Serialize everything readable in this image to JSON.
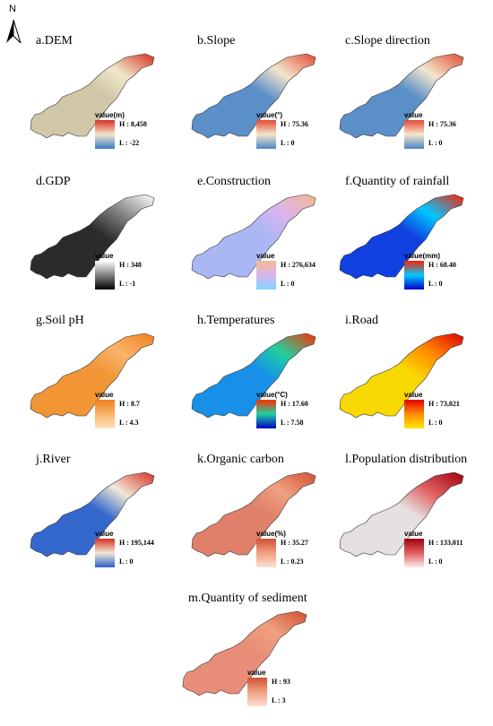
{
  "north_arrow": {
    "label": "N"
  },
  "panels": [
    {
      "id": "a",
      "title": "a.DEM",
      "legend": {
        "label": "value(m)",
        "high": "H : 8,458",
        "low": "L : -22"
      },
      "colors": {
        "low": "#3a78c8",
        "mid": "#f2e7c9",
        "high": "#d7301f"
      },
      "fill": "#cfc7a8"
    },
    {
      "id": "b",
      "title": "b.Slope",
      "legend": {
        "label": "value(°)",
        "high": "H : 75.36",
        "low": "L : 0"
      },
      "colors": {
        "low": "#4a86c6",
        "mid": "#f3e6cc",
        "high": "#e34a33"
      },
      "fill": "#5b8fc8"
    },
    {
      "id": "c",
      "title": "c.Slope direction",
      "legend": {
        "label": "value",
        "high": "H : 75.36",
        "low": "L : 0"
      },
      "colors": {
        "low": "#4a86c6",
        "mid": "#f3e6cc",
        "high": "#e34a33"
      },
      "fill": "#5b8fc8"
    },
    {
      "id": "d",
      "title": "d.GDP",
      "legend": {
        "label": "value",
        "high": "H : 348",
        "low": "L : -1"
      },
      "colors": {
        "low": "#000000",
        "mid": "#808080",
        "high": "#ffffff"
      },
      "fill": "#2b2b2b"
    },
    {
      "id": "e",
      "title": "e.Construction",
      "legend": {
        "label": "value",
        "high": "H : 276,634",
        "low": "L : 0"
      },
      "colors": {
        "low": "#7fd6ff",
        "mid": "#d9b4f0",
        "high": "#f6b98c"
      },
      "fill": "#a9b8f5"
    },
    {
      "id": "f",
      "title": "f.Quantity of rainfall",
      "legend": {
        "label": "value(mm)",
        "high": "H : 68.40",
        "low": "L : 0"
      },
      "colors": {
        "low": "#0000c8",
        "mid": "#00c8ff",
        "high": "#ff2000"
      },
      "fill": "#1040e0"
    },
    {
      "id": "g",
      "title": "g.Soil pH",
      "legend": {
        "label": "value",
        "high": "H : 8.7",
        "low": "L : 4.3"
      },
      "colors": {
        "low": "#fde2c0",
        "mid": "#f9b46a",
        "high": "#f08020"
      },
      "fill": "#f29535"
    },
    {
      "id": "h",
      "title": "h.Temperatures",
      "legend": {
        "label": "value(°C)",
        "high": "H : 17.60",
        "low": "L : 7.58"
      },
      "colors": {
        "low": "#0000c8",
        "mid": "#20d0a0",
        "high": "#ff3000"
      },
      "fill": "#1890e8"
    },
    {
      "id": "i",
      "title": "i.Road",
      "legend": {
        "label": "value",
        "high": "H : 73,021",
        "low": "L : 0"
      },
      "colors": {
        "low": "#ffe600",
        "mid": "#ff8c00",
        "high": "#e00000"
      },
      "fill": "#f7d800"
    },
    {
      "id": "j",
      "title": "j.River",
      "legend": {
        "label": "value",
        "high": "H : 195,144",
        "low": "L : 0"
      },
      "colors": {
        "low": "#2a5fc8",
        "mid": "#f2e8d8",
        "high": "#d73020"
      },
      "fill": "#3568cc"
    },
    {
      "id": "k",
      "title": "k.Organic carbon",
      "legend": {
        "label": "value(%)",
        "high": "H : 35.27",
        "low": "L : 0.23"
      },
      "colors": {
        "low": "#fbe0d4",
        "mid": "#f0a080",
        "high": "#d05030"
      },
      "fill": "#e0806a"
    },
    {
      "id": "l",
      "title": "l.Population distribution",
      "legend": {
        "label": "value",
        "high": "H : 133,011",
        "low": "L : 0"
      },
      "colors": {
        "low": "#fdecec",
        "mid": "#e06060",
        "high": "#a00010"
      },
      "fill": "#e6e0e0"
    },
    {
      "id": "m",
      "title": "m.Quantity of sediment",
      "legend": {
        "label": "value",
        "high": "H : 93",
        "low": "L : 3"
      },
      "colors": {
        "low": "#fbe0d4",
        "mid": "#f0a080",
        "high": "#d05030"
      },
      "fill": "#e88e78"
    }
  ]
}
